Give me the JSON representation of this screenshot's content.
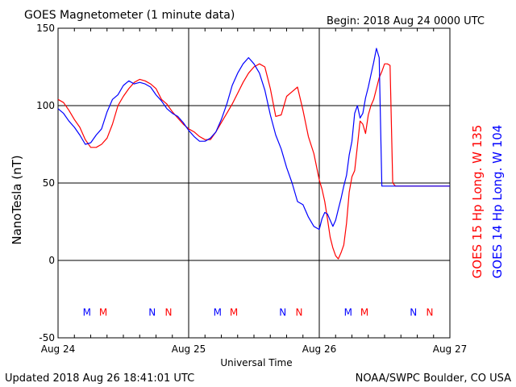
{
  "header": {
    "title": "GOES Magnetometer (1 minute data)",
    "begin": "Begin:  2018 Aug 24 0000 UTC"
  },
  "footer": {
    "updated": "Updated 2018 Aug 26 18:41:01 UTC",
    "source": "NOAA/SWPC Boulder, CO USA"
  },
  "colors": {
    "goes15": "#ff0000",
    "goes14": "#0000ff",
    "axes": "#000000",
    "background": "#ffffff"
  },
  "chart_data": {
    "type": "line",
    "title": "GOES Magnetometer (1 minute data)",
    "xlabel": "Universal Time",
    "ylabel": "NanoTesla (nT)",
    "xlim": [
      0,
      72
    ],
    "ylim": [
      -50,
      150
    ],
    "x_unit": "hours since 2018 Aug 24 0000 UTC",
    "x_ticks": [
      {
        "x": 0,
        "label": "Aug 24"
      },
      {
        "x": 24,
        "label": "Aug 25"
      },
      {
        "x": 48,
        "label": "Aug 26"
      },
      {
        "x": 72,
        "label": "Aug 27"
      }
    ],
    "y_ticks": [
      -50,
      0,
      50,
      100,
      150
    ],
    "grid": {
      "horizontal": [
        0,
        50,
        100
      ],
      "vertical": [
        24,
        48
      ]
    },
    "legend_position": "right, vertical",
    "series": [
      {
        "name": "GOES 15 Hp  Long. W 135",
        "color": "#ff0000",
        "x": [
          0,
          1,
          2,
          3,
          4,
          5,
          6,
          7,
          8,
          9,
          10,
          11,
          12,
          13,
          14,
          15,
          16,
          17,
          18,
          19,
          20,
          21,
          22,
          23,
          24,
          25,
          26,
          27,
          28,
          29,
          30,
          31,
          32,
          33,
          34,
          35,
          36,
          37,
          38,
          39,
          40,
          41,
          42,
          43,
          44,
          45,
          46,
          47,
          48,
          48.5,
          49,
          49.5,
          50,
          50.5,
          51,
          51.5,
          52,
          52.5,
          53,
          53.5,
          54,
          54.5,
          55,
          55.5,
          56,
          56.5,
          57,
          57.5,
          58,
          58.5,
          59,
          59.5,
          60,
          60.5,
          61,
          61.5,
          62,
          62.5,
          63,
          63.5,
          64,
          64.5,
          65,
          65.5,
          66,
          66.5,
          67,
          67.5,
          68,
          68.5,
          69,
          69.5,
          70,
          70.5,
          71,
          71.5,
          72
        ],
        "values": [
          104,
          102,
          97,
          91,
          86,
          78,
          73,
          73,
          75,
          79,
          88,
          100,
          106,
          111,
          115,
          117,
          116,
          114,
          111,
          104,
          101,
          96,
          92,
          88,
          85,
          83,
          80,
          78,
          78,
          83,
          89,
          95,
          101,
          108,
          115,
          121,
          125,
          127,
          125,
          111,
          93,
          94,
          106,
          109,
          112,
          97,
          80,
          69,
          52,
          46,
          38,
          27,
          15,
          8,
          3,
          1,
          5,
          10,
          24,
          44,
          54,
          58,
          74,
          90,
          88,
          82,
          94,
          100,
          104,
          111,
          118,
          122,
          127,
          127,
          126,
          50,
          48,
          48,
          48,
          48,
          48,
          48,
          48,
          48,
          48,
          48,
          48,
          48,
          48,
          48,
          48,
          48,
          48,
          48,
          48,
          48,
          48
        ]
      },
      {
        "name": "GOES 14 Hp  Long. W 104",
        "color": "#0000ff",
        "x": [
          0,
          1,
          2,
          3,
          4,
          5,
          6,
          7,
          8,
          9,
          10,
          11,
          12,
          13,
          14,
          15,
          16,
          17,
          18,
          19,
          20,
          21,
          22,
          23,
          24,
          25,
          26,
          27,
          28,
          29,
          30,
          31,
          32,
          33,
          34,
          35,
          36,
          37,
          38,
          39,
          40,
          41,
          42,
          43,
          44,
          45,
          46,
          47,
          48,
          48.5,
          49,
          49.5,
          50,
          50.5,
          51,
          51.5,
          52,
          52.5,
          53,
          53.5,
          54,
          54.5,
          55,
          55.5,
          56,
          56.5,
          57,
          57.5,
          58,
          58.5,
          59,
          59.5,
          60,
          60.5,
          61,
          61.5,
          62,
          62.5,
          63,
          63.5,
          64,
          64.5,
          65,
          65.5,
          66,
          66.5,
          67,
          67.5,
          68,
          68.5,
          69,
          69.5,
          70,
          70.5,
          71,
          71.5,
          72
        ],
        "values": [
          98,
          95,
          90,
          86,
          81,
          75,
          76,
          81,
          85,
          96,
          104,
          107,
          113,
          116,
          114,
          115,
          114,
          112,
          107,
          103,
          98,
          95,
          93,
          89,
          84,
          80,
          77,
          77,
          79,
          83,
          91,
          101,
          113,
          121,
          127,
          131,
          127,
          121,
          110,
          94,
          81,
          72,
          60,
          50,
          38,
          36,
          28,
          22,
          20,
          27,
          31,
          30,
          26,
          22,
          26,
          33,
          40,
          48,
          55,
          68,
          77,
          95,
          100,
          92,
          95,
          105,
          112,
          120,
          128,
          137,
          131,
          48,
          48,
          48,
          48,
          48,
          48,
          48,
          48,
          48,
          48,
          48,
          48,
          48,
          48,
          48,
          48,
          48,
          48,
          48,
          48,
          48,
          48,
          48,
          48,
          48,
          48
        ]
      }
    ],
    "annotations": [
      {
        "label": "M",
        "x": 5.3,
        "y": -33,
        "color": "#0000ff"
      },
      {
        "label": "M",
        "x": 8.3,
        "y": -33,
        "color": "#ff0000"
      },
      {
        "label": "N",
        "x": 17.3,
        "y": -33,
        "color": "#0000ff"
      },
      {
        "label": "N",
        "x": 20.3,
        "y": -33,
        "color": "#ff0000"
      },
      {
        "label": "M",
        "x": 29.3,
        "y": -33,
        "color": "#0000ff"
      },
      {
        "label": "M",
        "x": 32.3,
        "y": -33,
        "color": "#ff0000"
      },
      {
        "label": "N",
        "x": 41.3,
        "y": -33,
        "color": "#0000ff"
      },
      {
        "label": "N",
        "x": 44.3,
        "y": -33,
        "color": "#ff0000"
      },
      {
        "label": "M",
        "x": 53.3,
        "y": -33,
        "color": "#0000ff"
      },
      {
        "label": "M",
        "x": 56.3,
        "y": -33,
        "color": "#ff0000"
      },
      {
        "label": "N",
        "x": 65.3,
        "y": -33,
        "color": "#0000ff"
      },
      {
        "label": "N",
        "x": 68.3,
        "y": -33,
        "color": "#ff0000"
      }
    ]
  }
}
